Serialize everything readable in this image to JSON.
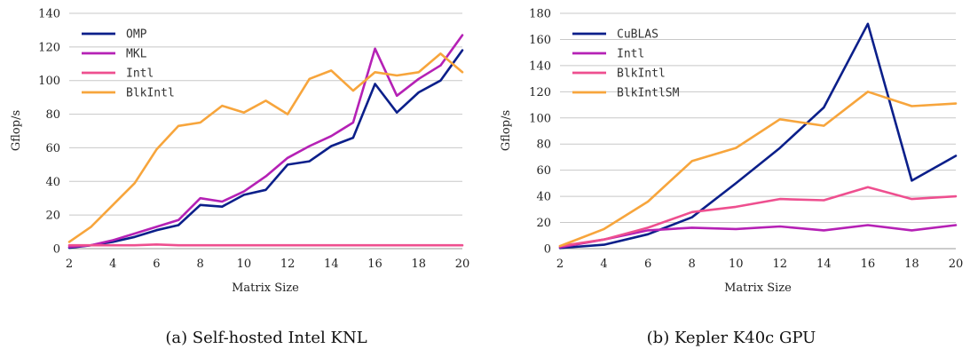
{
  "chart_data": [
    {
      "type": "line",
      "caption": "(a) Self-hosted Intel KNL",
      "xlabel": "Matrix Size",
      "ylabel": "Gflop/s",
      "xlim": [
        2,
        20
      ],
      "ylim": [
        0,
        140
      ],
      "xticks": [
        2,
        4,
        6,
        8,
        10,
        12,
        14,
        16,
        18,
        20
      ],
      "yticks": [
        0,
        20,
        40,
        60,
        80,
        100,
        120,
        140
      ],
      "grid": "horizontal",
      "legend_position": "top-left",
      "x": [
        2,
        3,
        4,
        5,
        6,
        7,
        8,
        9,
        10,
        11,
        12,
        13,
        14,
        15,
        16,
        17,
        18,
        19,
        20
      ],
      "series": [
        {
          "name": "OMP",
          "color": "#0b1f8a",
          "values": [
            0.5,
            2,
            4,
            7,
            11,
            14,
            26,
            25,
            32,
            35,
            50,
            52,
            61,
            66,
            98,
            81,
            93,
            100,
            118
          ]
        },
        {
          "name": "MKL",
          "color": "#b521b5",
          "values": [
            1,
            2,
            5,
            9,
            13,
            17,
            30,
            28,
            34,
            43,
            54,
            61,
            67,
            75,
            119,
            91,
            101,
            109,
            127
          ]
        },
        {
          "name": "Intl",
          "color": "#ee4f8f",
          "values": [
            2,
            2,
            2,
            2,
            2.5,
            2,
            2,
            2,
            2,
            2,
            2,
            2,
            2,
            2,
            2,
            2,
            2,
            2,
            2
          ]
        },
        {
          "name": "BlkIntl",
          "color": "#f7a53c",
          "values": [
            4,
            13,
            26,
            39,
            59,
            73,
            75,
            85,
            81,
            88,
            80,
            101,
            106,
            94,
            105,
            103,
            105,
            116,
            105
          ]
        }
      ]
    },
    {
      "type": "line",
      "caption": "(b) Kepler K40c GPU",
      "xlabel": "Matrix Size",
      "ylabel": "Gflop/s",
      "xlim": [
        2,
        20
      ],
      "ylim": [
        0,
        180
      ],
      "xticks": [
        2,
        4,
        6,
        8,
        10,
        12,
        14,
        16,
        18,
        20
      ],
      "yticks": [
        0,
        20,
        40,
        60,
        80,
        100,
        120,
        140,
        160,
        180
      ],
      "grid": "horizontal",
      "legend_position": "top-left",
      "x": [
        2,
        4,
        6,
        8,
        10,
        12,
        14,
        16,
        18,
        20
      ],
      "series": [
        {
          "name": "CuBLAS",
          "color": "#0b1f8a",
          "values": [
            0.5,
            3,
            11,
            24,
            50,
            77,
            108,
            172,
            52,
            71
          ]
        },
        {
          "name": "Intl",
          "color": "#b521b5",
          "values": [
            1,
            7,
            14,
            16,
            15,
            17,
            14,
            18,
            14,
            18
          ]
        },
        {
          "name": "BlkIntl",
          "color": "#ee4f8f",
          "values": [
            2,
            7,
            16,
            28,
            32,
            38,
            37,
            47,
            38,
            40
          ]
        },
        {
          "name": "BlkIntlSM",
          "color": "#f7a53c",
          "values": [
            2,
            15,
            36,
            67,
            77,
            99,
            94,
            120,
            109,
            111
          ]
        }
      ]
    }
  ]
}
